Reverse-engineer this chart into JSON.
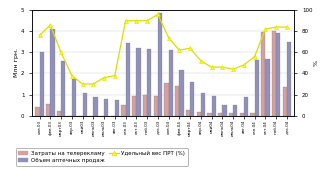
{
  "months": [
    "янв.03",
    "фев.03",
    "март03",
    "апр.03",
    "май03",
    "июнь03",
    "июль03",
    "авг.03",
    "свн.03",
    "окт.03",
    "ноб.03",
    "дек.03",
    "янв.04",
    "фев.04",
    "март04",
    "апр.04",
    "май04",
    "июнь04",
    "июль04",
    "авг.04",
    "свн.04",
    "окт.04",
    "ноб.04",
    "дек.04"
  ],
  "tv_costs": [
    0.4,
    0.55,
    0.2,
    0.0,
    0.0,
    0.0,
    0.0,
    0.0,
    0.5,
    0.95,
    1.0,
    0.95,
    1.55,
    1.4,
    0.25,
    0.15,
    0.1,
    0.1,
    0.1,
    0.1,
    0.1,
    3.95,
    4.0,
    1.35
  ],
  "retail_sales": [
    3.0,
    4.1,
    2.6,
    1.75,
    1.05,
    0.9,
    0.8,
    0.75,
    3.45,
    3.2,
    3.15,
    4.85,
    3.1,
    2.15,
    1.6,
    1.05,
    0.95,
    0.5,
    0.5,
    0.9,
    2.65,
    2.7,
    3.9,
    3.5
  ],
  "prt_weight": [
    76,
    86,
    60,
    38,
    30,
    30,
    36,
    38,
    90,
    90,
    90,
    96,
    74,
    62,
    64,
    52,
    46,
    46,
    44,
    48,
    56,
    82,
    84,
    84
  ],
  "tv_color": "#d4a0a0",
  "sales_color": "#9090bb",
  "prt_marker_color": "#ffff00",
  "prt_line_color": "#dddd00",
  "ylabel_left": "Млн грн.",
  "ylabel_right": "%",
  "ylim_left": [
    0,
    5
  ],
  "ylim_right": [
    0,
    100
  ],
  "yticks_left": [
    0,
    1,
    2,
    3,
    4,
    5
  ],
  "yticks_right": [
    0,
    20,
    40,
    60,
    80,
    100
  ],
  "legend_tv": "Затраты на телерекламу",
  "legend_sales": "Объем аптечных продаж",
  "legend_prt": "Удельный вес ПРТ (%)",
  "bar_width": 0.4,
  "figsize": [
    3.2,
    1.7
  ],
  "dpi": 100
}
